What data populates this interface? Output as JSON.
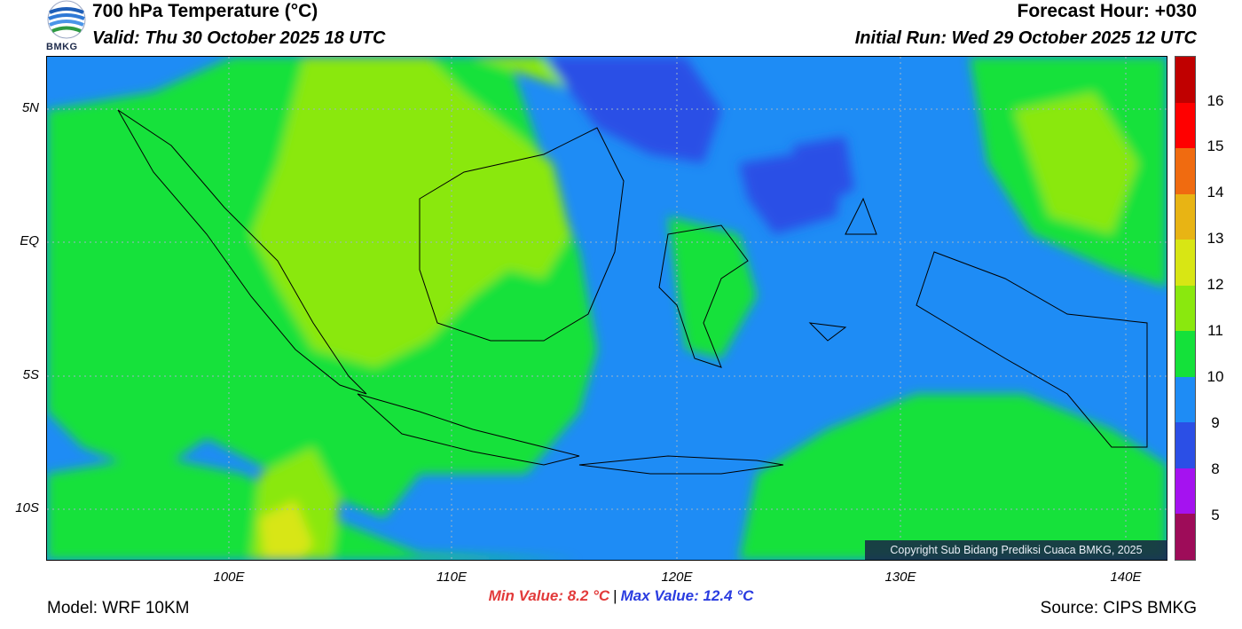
{
  "header": {
    "title": "700 hPa Temperature (°C)",
    "valid": "Valid: Thu 30 October 2025 18 UTC",
    "forecast_hour": "Forecast Hour: +030",
    "initial_run": "Initial Run: Wed 29 October 2025 12 UTC"
  },
  "logo": {
    "text": "BMKG",
    "icon": "bmkg-logo-icon"
  },
  "map": {
    "lat_labels": [
      "5N",
      "EQ",
      "5S",
      "10S"
    ],
    "lon_labels": [
      "100E",
      "110E",
      "120E",
      "130E",
      "140E"
    ],
    "copyright": "Copyright Sub Bidang Prediksi Cuaca BMKG, 2025",
    "field_colors": {
      "low": "#2b5ee8",
      "cool": "#1e90ff",
      "mid": "#17e53a",
      "warm": "#8de30e",
      "hot": "#d7e60b"
    }
  },
  "colorbar": {
    "labels": [
      "16",
      "15",
      "14",
      "13",
      "12",
      "11",
      "10",
      "9",
      "8",
      "5"
    ],
    "colors": [
      "#c00000",
      "#ff0000",
      "#f06b10",
      "#e8b414",
      "#d8e614",
      "#8ae80e",
      "#14e13a",
      "#1e8cf5",
      "#2b4fe6",
      "#a512f0",
      "#9e0c59"
    ]
  },
  "footer": {
    "min_value": "Min Value: 8.2 °C",
    "separator": "|",
    "max_value": "Max Value: 12.4 °C",
    "model": "Model: WRF 10KM",
    "source": "Source: CIPS BMKG"
  }
}
